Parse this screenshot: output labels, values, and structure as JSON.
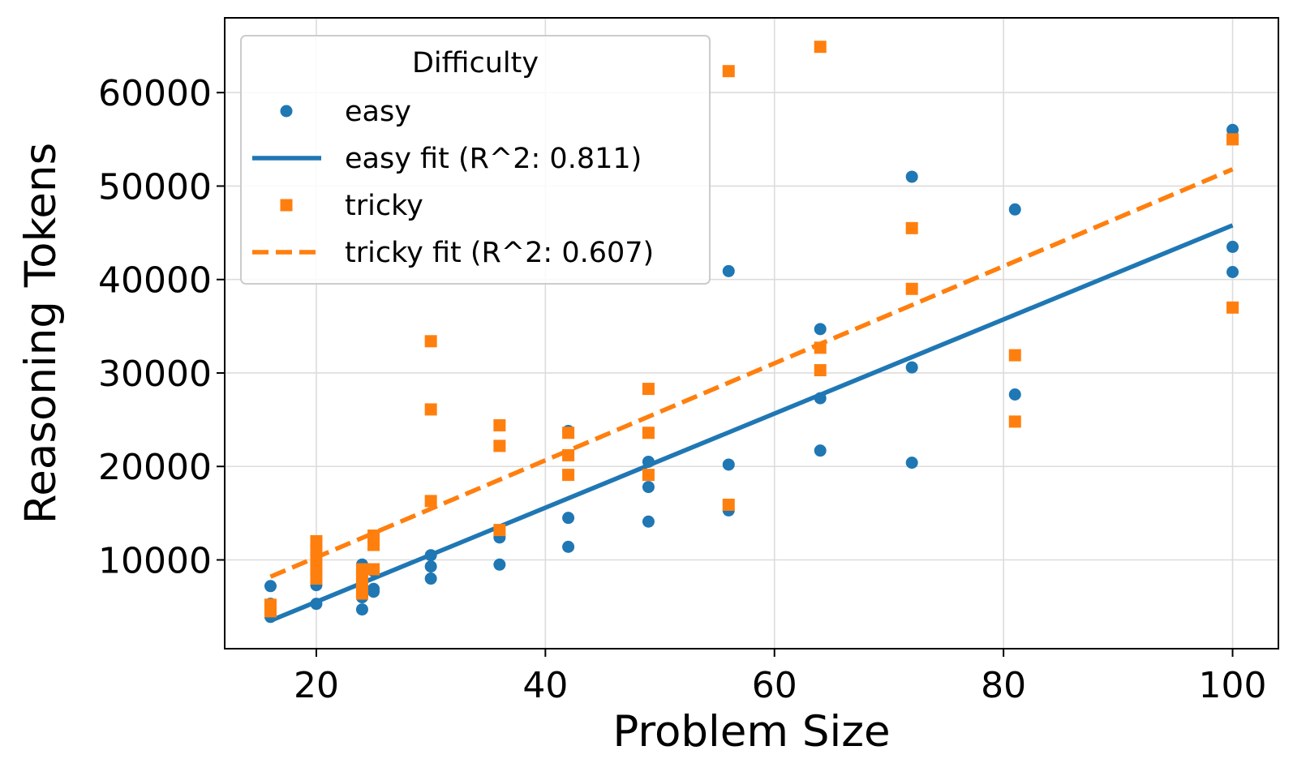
{
  "chart_data": {
    "type": "scatter",
    "xlabel": "Problem Size",
    "ylabel": "Reasoning Tokens",
    "xlim": [
      12,
      104
    ],
    "ylim": [
      500,
      68000
    ],
    "xticks": [
      20,
      40,
      60,
      80,
      100
    ],
    "yticks": [
      10000,
      20000,
      30000,
      40000,
      50000,
      60000
    ],
    "grid": true,
    "legend": {
      "title": "Difficulty",
      "placement": "top-left",
      "entries": [
        "easy",
        "easy fit (R^2: 0.811)",
        "tricky",
        "tricky fit (R^2: 0.607)"
      ]
    },
    "series": [
      {
        "name": "easy",
        "kind": "points",
        "marker": "circle",
        "color": "#1f77b4",
        "points": [
          [
            16,
            7200
          ],
          [
            16,
            5300
          ],
          [
            16,
            3900
          ],
          [
            20,
            10800
          ],
          [
            20,
            7300
          ],
          [
            20,
            5300
          ],
          [
            24,
            9500
          ],
          [
            24,
            7300
          ],
          [
            24,
            6000
          ],
          [
            24,
            4700
          ],
          [
            25,
            8800
          ],
          [
            25,
            6900
          ],
          [
            25,
            6600
          ],
          [
            30,
            10500
          ],
          [
            30,
            9300
          ],
          [
            30,
            8000
          ],
          [
            36,
            12400
          ],
          [
            36,
            9500
          ],
          [
            42,
            23800
          ],
          [
            42,
            14500
          ],
          [
            42,
            11400
          ],
          [
            49,
            20500
          ],
          [
            49,
            17800
          ],
          [
            49,
            14100
          ],
          [
            56,
            40900
          ],
          [
            56,
            20200
          ],
          [
            56,
            15300
          ],
          [
            64,
            34700
          ],
          [
            64,
            27300
          ],
          [
            64,
            21700
          ],
          [
            72,
            51000
          ],
          [
            72,
            30600
          ],
          [
            72,
            20400
          ],
          [
            81,
            47500
          ],
          [
            81,
            27700
          ],
          [
            100,
            56000
          ],
          [
            100,
            43500
          ],
          [
            100,
            40800
          ]
        ]
      },
      {
        "name": "easy fit (R^2: 0.811)",
        "kind": "line",
        "dash": "solid",
        "color": "#1f77b4",
        "points": [
          [
            16,
            3500
          ],
          [
            100,
            45800
          ]
        ]
      },
      {
        "name": "tricky",
        "kind": "points",
        "marker": "square",
        "color": "#ff7f0e",
        "points": [
          [
            16,
            5200
          ],
          [
            16,
            4800
          ],
          [
            16,
            4500
          ],
          [
            20,
            12000
          ],
          [
            20,
            11000
          ],
          [
            20,
            10000
          ],
          [
            20,
            9000
          ],
          [
            20,
            8000
          ],
          [
            24,
            9000
          ],
          [
            24,
            8300
          ],
          [
            24,
            7500
          ],
          [
            24,
            6700
          ],
          [
            24,
            6400
          ],
          [
            25,
            12600
          ],
          [
            25,
            11600
          ],
          [
            25,
            9000
          ],
          [
            30,
            33400
          ],
          [
            30,
            26100
          ],
          [
            30,
            16300
          ],
          [
            36,
            24400
          ],
          [
            36,
            22200
          ],
          [
            36,
            13200
          ],
          [
            42,
            23600
          ],
          [
            42,
            21200
          ],
          [
            42,
            19100
          ],
          [
            49,
            28300
          ],
          [
            49,
            23600
          ],
          [
            49,
            19100
          ],
          [
            56,
            62300
          ],
          [
            56,
            15900
          ],
          [
            64,
            64900
          ],
          [
            64,
            32700
          ],
          [
            64,
            30300
          ],
          [
            72,
            45500
          ],
          [
            72,
            39000
          ],
          [
            81,
            31900
          ],
          [
            81,
            24800
          ],
          [
            100,
            55000
          ],
          [
            100,
            37000
          ]
        ]
      },
      {
        "name": "tricky fit (R^2: 0.607)",
        "kind": "line",
        "dash": "dashed",
        "color": "#ff7f0e",
        "points": [
          [
            16,
            8200
          ],
          [
            100,
            51800
          ]
        ]
      }
    ]
  }
}
